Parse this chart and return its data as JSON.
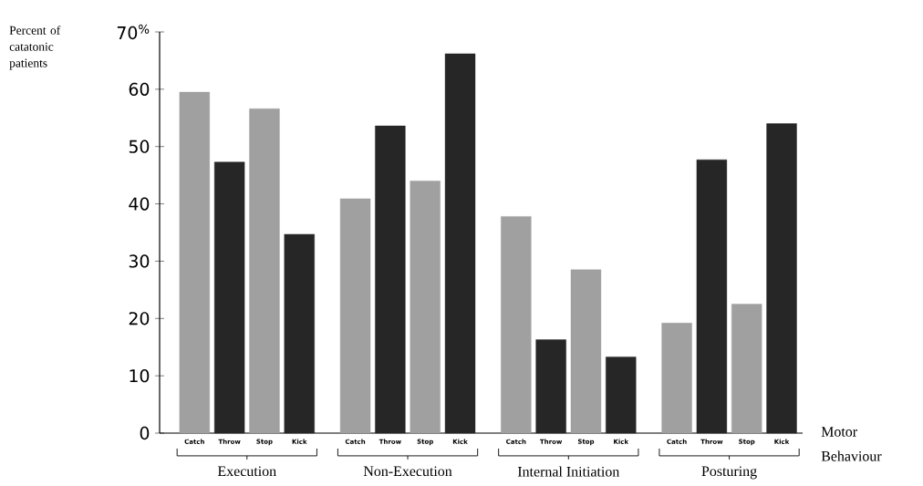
{
  "chart_data": {
    "type": "bar",
    "ylabel": "Percent of catatonic patients",
    "xlabel": "Motor Behaviour",
    "categories": [
      "Catch",
      "Throw",
      "Stop",
      "Kick",
      "Catch",
      "Throw",
      "Stop",
      "Kick",
      "Catch",
      "Throw",
      "Stop",
      "Kick",
      "Catch",
      "Throw",
      "Stop",
      "Kick"
    ],
    "values": [
      59.5,
      47.3,
      56.6,
      34.7,
      40.9,
      53.6,
      44.0,
      66.2,
      37.8,
      16.3,
      28.5,
      13.3,
      19.2,
      47.7,
      22.5,
      54.0
    ],
    "colors": [
      "#a0a0a0",
      "#262626",
      "#a0a0a0",
      "#262626",
      "#a0a0a0",
      "#262626",
      "#a0a0a0",
      "#262626",
      "#a0a0a0",
      "#262626",
      "#a0a0a0",
      "#262626",
      "#a0a0a0",
      "#262626",
      "#a0a0a0",
      "#262626"
    ],
    "annotations": [
      "Execution",
      "Non-Execution",
      "Internal Initiation",
      "Posturing"
    ],
    "ylim": [
      0,
      70
    ],
    "yticks": [
      0,
      10,
      20,
      30,
      40,
      50,
      60,
      {
        "value": 70,
        "label": "70$^{%}$"
      }
    ],
    "grid": false
  }
}
